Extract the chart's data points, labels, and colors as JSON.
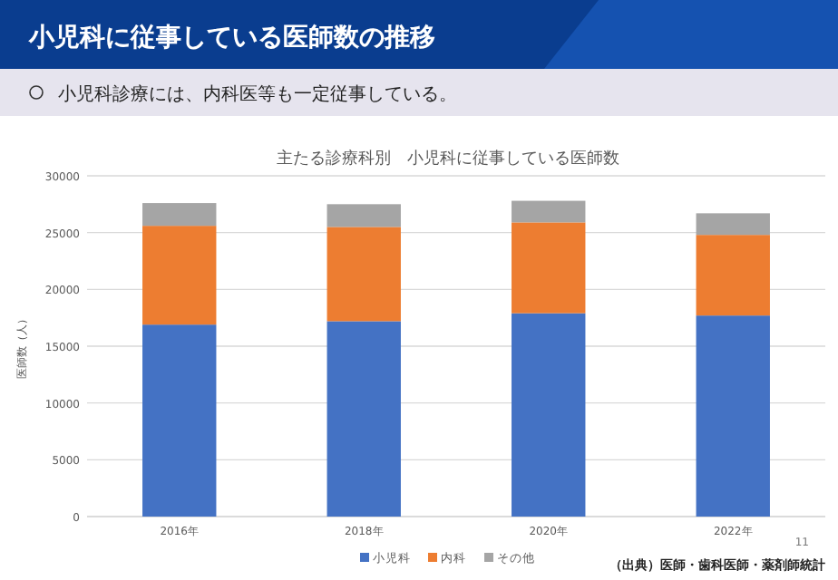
{
  "chart_data": {
    "type": "bar",
    "title": "小児科に従事している医師数の推移",
    "subtitle": "小児科診療には、内科医等も一定従事している。",
    "ylabel": "医師数（人）",
    "annotations": [
      "主たる診療科別　小児科に従事している医師数",
      "（出典）医師・歯科医師・薬剤師統計",
      "11"
    ],
    "categories": [
      "2016年",
      "2018年",
      "2020年",
      "2022年"
    ],
    "series": [
      {
        "name": "小児科",
        "color": "#4472c4",
        "values": [
          16900,
          17200,
          17900,
          17700
        ]
      },
      {
        "name": "内科",
        "color": "#ed7d31",
        "values": [
          8700,
          8300,
          8000,
          7100
        ]
      },
      {
        "name": "その他",
        "color": "#a5a5a5",
        "values": [
          2000,
          2000,
          1900,
          1900
        ]
      }
    ],
    "stacked": true,
    "ylim": [
      0,
      30000
    ],
    "yticks": [
      0,
      5000,
      10000,
      15000,
      20000,
      25000,
      30000
    ],
    "grid": "y",
    "legend": "bottom"
  }
}
